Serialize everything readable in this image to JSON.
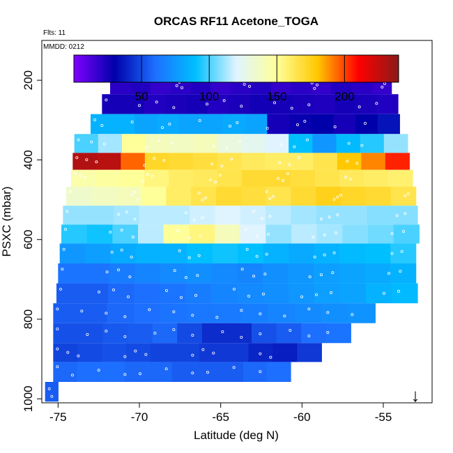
{
  "chart_data": {
    "type": "heatmap",
    "title": "ORCAS RF11 Acetone_TOGA",
    "subtitle_flights": "Flts: 11",
    "subtitle_date": "MMDD: 0212",
    "xlabel": "Latitude (deg N)",
    "ylabel": "PSXC (mbar)",
    "xlim": [
      -76,
      -52
    ],
    "ylim": [
      1010,
      100
    ],
    "x_ticks": [
      -75,
      -70,
      -65,
      -60,
      -55
    ],
    "x_tick_labels": [
      "-75",
      "-70",
      "-65",
      "-60",
      "-55"
    ],
    "y_ticks": [
      200,
      400,
      600,
      800,
      1000
    ],
    "y_tick_labels": [
      "200",
      "400",
      "600",
      "800",
      "1000"
    ],
    "colorbar": {
      "range": [
        0,
        240
      ],
      "ticks": [
        50,
        100,
        150,
        200
      ],
      "tick_labels": [
        "50",
        "100",
        "150",
        "200"
      ],
      "colors": [
        "#8000ff",
        "#0000aa",
        "#1d6fff",
        "#00bfff",
        "#dff4ff",
        "#ffff99",
        "#ffc800",
        "#ff0000",
        "#8b1a1a"
      ]
    },
    "layers": [
      {
        "p": 210,
        "x0": -71.8,
        "x1": -54.5,
        "values": [
          20,
          22,
          18,
          20,
          22,
          18,
          20,
          22,
          18,
          20,
          18,
          22,
          20,
          18
        ]
      },
      {
        "p": 260,
        "x0": -72.3,
        "x1": -54.1,
        "values": [
          25,
          25,
          22,
          24,
          25,
          22,
          24,
          26,
          25,
          24,
          23,
          25,
          24,
          22
        ]
      },
      {
        "p": 310,
        "x0": -73.0,
        "x1": -54.0,
        "values": [
          85,
          85,
          80,
          82,
          80,
          80,
          82,
          80,
          25,
          28,
          30,
          25,
          30,
          35
        ]
      },
      {
        "p": 360,
        "x0": -74.0,
        "x1": -53.5,
        "values": [
          100,
          112,
          150,
          140,
          138,
          140,
          130,
          125,
          120,
          90,
          75,
          88,
          95,
          110
        ]
      },
      {
        "p": 405,
        "x0": -74.1,
        "x1": -53.4,
        "values": [
          230,
          228,
          195,
          172,
          170,
          168,
          165,
          162,
          160,
          160,
          165,
          180,
          190,
          205
        ]
      },
      {
        "p": 445,
        "x0": -74.2,
        "x1": -53.2,
        "values": [
          145,
          148,
          150,
          155,
          160,
          162,
          165,
          170,
          170,
          168,
          165,
          162,
          160,
          158
        ]
      },
      {
        "p": 490,
        "x0": -74.5,
        "x1": -53.0,
        "values": [
          135,
          138,
          140,
          150,
          160,
          165,
          170,
          168,
          165,
          170,
          175,
          172,
          170,
          165
        ]
      },
      {
        "p": 540,
        "x0": -74.7,
        "x1": -52.9,
        "values": [
          110,
          110,
          112,
          115,
          115,
          118,
          120,
          118,
          115,
          112,
          110,
          110,
          108,
          108
        ]
      },
      {
        "p": 585,
        "x0": -74.8,
        "x1": -52.8,
        "values": [
          95,
          92,
          100,
          115,
          150,
          155,
          140,
          120,
          110,
          115,
          112,
          108,
          105,
          100
        ]
      },
      {
        "p": 635,
        "x0": -74.9,
        "x1": -53.0,
        "values": [
          75,
          78,
          82,
          85,
          85,
          90,
          92,
          90,
          85,
          82,
          85,
          88,
          90,
          95
        ]
      },
      {
        "p": 685,
        "x0": -75.0,
        "x1": -53.0,
        "values": [
          62,
          62,
          65,
          68,
          70,
          72,
          70,
          68,
          72,
          75,
          78,
          80,
          82,
          85
        ]
      },
      {
        "p": 735,
        "x0": -75.1,
        "x1": -52.9,
        "values": [
          55,
          55,
          58,
          60,
          62,
          65,
          68,
          70,
          72,
          75,
          78,
          80,
          85,
          88
        ]
      },
      {
        "p": 785,
        "x0": -75.3,
        "x1": -55.5,
        "values": [
          55,
          55,
          58,
          60,
          62,
          63,
          64,
          66,
          68,
          70,
          72,
          74
        ]
      },
      {
        "p": 835,
        "x0": -75.3,
        "x1": -57.0,
        "values": [
          52,
          52,
          54,
          55,
          58,
          50,
          42,
          42,
          52,
          55,
          60,
          62
        ]
      },
      {
        "p": 885,
        "x0": -75.3,
        "x1": -58.8,
        "values": [
          48,
          50,
          52,
          50,
          48,
          48,
          45,
          45,
          40,
          38,
          45
        ]
      },
      {
        "p": 930,
        "x0": -75.3,
        "x1": -60.7,
        "values": [
          58,
          60,
          60,
          58,
          58,
          55,
          55,
          55,
          58,
          60
        ]
      },
      {
        "p": 985,
        "x0": -75.8,
        "x1": -75.0,
        "values": [
          55
        ]
      }
    ],
    "flight_direction_marker": "↓"
  }
}
